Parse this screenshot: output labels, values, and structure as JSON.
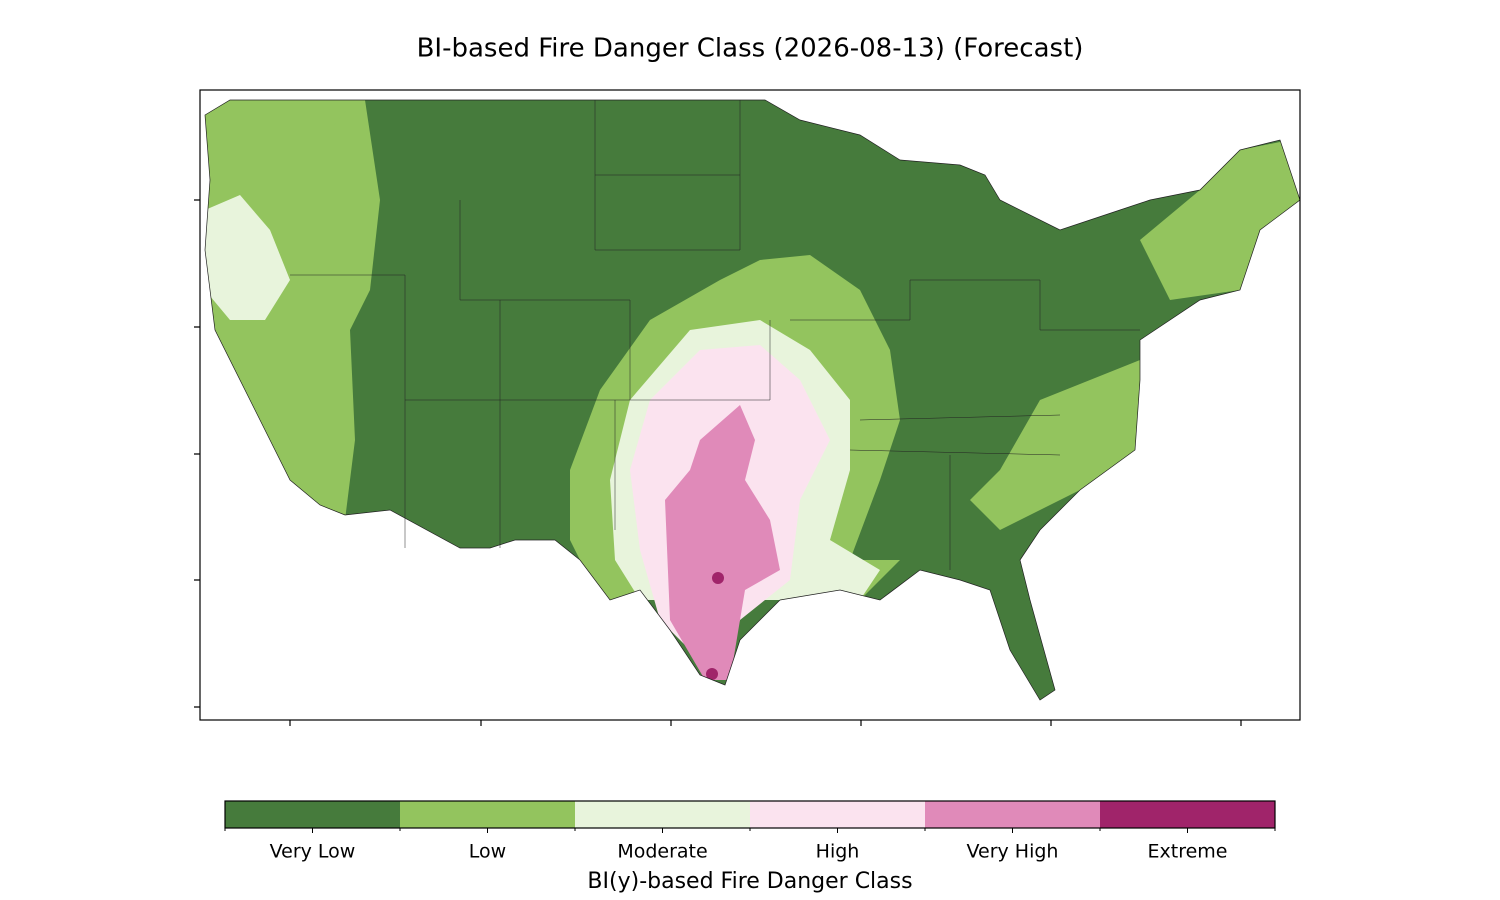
{
  "title": "BI-based Fire Danger Class (2026-08-13) (Forecast)",
  "colorbar": {
    "label": "BI(y)-based Fire Danger Class",
    "classes": [
      {
        "name": "Very Low",
        "color": "#467b3c"
      },
      {
        "name": "Low",
        "color": "#93c45e"
      },
      {
        "name": "Moderate",
        "color": "#e8f4dc"
      },
      {
        "name": "High",
        "color": "#fbe3ef"
      },
      {
        "name": "Very High",
        "color": "#e08ab9"
      },
      {
        "name": "Extreme",
        "color": "#a0246a"
      }
    ]
  }
}
